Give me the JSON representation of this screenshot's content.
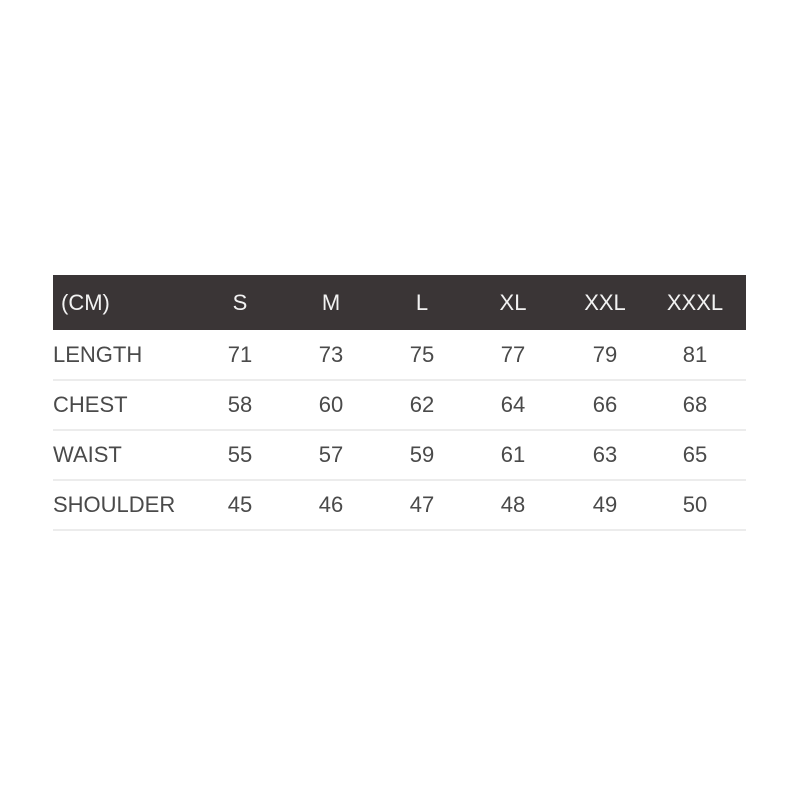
{
  "table": {
    "header": [
      "(CM)",
      "S",
      "M",
      "L",
      "XL",
      "XXL",
      "XXXL"
    ],
    "rows": [
      {
        "label": "LENGTH",
        "values": [
          "71",
          "73",
          "75",
          "77",
          "79",
          "81"
        ]
      },
      {
        "label": "CHEST",
        "values": [
          "58",
          "60",
          "62",
          "64",
          "66",
          "68"
        ]
      },
      {
        "label": "WAIST",
        "values": [
          "55",
          "57",
          "59",
          "61",
          "63",
          "65"
        ]
      },
      {
        "label": "SHOULDER",
        "values": [
          "45",
          "46",
          "47",
          "48",
          "49",
          "50"
        ]
      }
    ],
    "header_bg": "#3a3536"
  }
}
